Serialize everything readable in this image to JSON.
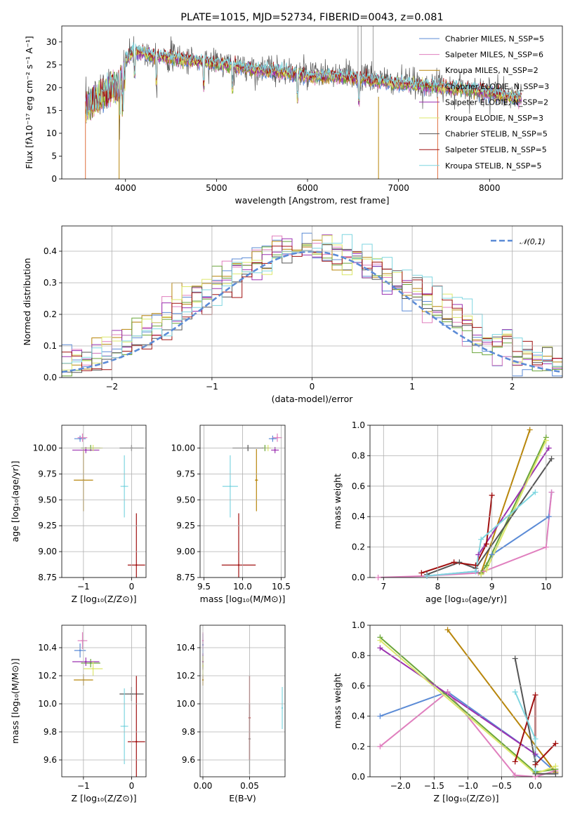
{
  "colors": [
    "#5b8bd6",
    "#e07fbe",
    "#b8860b",
    "#6aa53a",
    "#9b30b0",
    "#dce76b",
    "#555555",
    "#a01010",
    "#7fd6e0"
  ],
  "chart_data": [
    {
      "id": "spectrum",
      "type": "line",
      "title": "PLATE=1015, MJD=52734, FIBERID=0043, z=0.081",
      "xlabel": "wavelength [Angstrom, rest frame]",
      "ylabel": "Flux [fλ10⁻¹⁷ erg cm⁻² s⁻¹ A⁻¹]",
      "xlim": [
        3300,
        8800
      ],
      "ylim": [
        0,
        33.5
      ],
      "xticks": [
        4000,
        5000,
        6000,
        7000,
        8000
      ],
      "yticks": [
        0,
        5,
        10,
        15,
        20,
        25,
        30
      ],
      "legend": [
        "Chabrier MILES, N_SSP=5",
        "Salpeter MILES, N_SSP=6",
        "Kroupa MILES, N_SSP=2",
        "Chabrier ELODIE, N_SSP=3",
        "Salpeter ELODIE, N_SSP=2",
        "Kroupa ELODIE, N_SSP=3",
        "Chabrier STELIB, N_SSP=5",
        "Salpeter STELIB, N_SSP=5",
        "Kroupa STELIB, N_SSP=5"
      ],
      "continuum": {
        "x": [
          3550,
          3700,
          3900,
          4000,
          4100,
          4300,
          4500,
          4700,
          4900,
          5100,
          5400,
          5700,
          6000,
          6300,
          6600,
          6900,
          7200,
          7500,
          7800,
          8100,
          8300
        ],
        "y": [
          18,
          21,
          23,
          26,
          28,
          27,
          26.5,
          26,
          25.5,
          25,
          24,
          23.5,
          22.5,
          22.5,
          22,
          21,
          20.5,
          20,
          19.5,
          18.5,
          17.5
        ]
      }
    },
    {
      "id": "residuals",
      "type": "line",
      "xlabel": "(data-model)/error",
      "ylabel": "Normed distribution",
      "xlim": [
        -2.5,
        2.5
      ],
      "ylim": [
        0,
        0.48
      ],
      "xticks": [
        -2,
        -1,
        0,
        1,
        2
      ],
      "yticks": [
        0.0,
        0.1,
        0.2,
        0.3,
        0.4
      ],
      "legend": [
        "𝒩(0,1)"
      ]
    },
    {
      "id": "age-vs-Z",
      "type": "scatter",
      "xlabel": "Z [log₁₀(Z/Z⊙)]",
      "ylabel": "age  [log₁₀(age/yr)]",
      "xlim": [
        -1.45,
        0.3
      ],
      "ylim": [
        8.75,
        10.22
      ],
      "xticks": [
        -1,
        0
      ],
      "yticks": [
        8.75,
        9.0,
        9.25,
        9.5,
        9.75,
        10.0
      ],
      "points": [
        {
          "x": -1.07,
          "y": 10.09,
          "xerr": 0.12,
          "yerr": 0.03
        },
        {
          "x": -1.02,
          "y": 10.1,
          "xerr": 0.1,
          "yerr": 0.04
        },
        {
          "x": -1.0,
          "y": 9.69,
          "xerr": 0.2,
          "yerr": 0.3
        },
        {
          "x": -0.85,
          "y": 10.0,
          "xerr": 0.2,
          "yerr": 0.03
        },
        {
          "x": -0.95,
          "y": 9.98,
          "xerr": 0.28,
          "yerr": 0.03
        },
        {
          "x": -0.8,
          "y": 10.0,
          "xerr": 0.2,
          "yerr": 0.03
        },
        {
          "x": 0.0,
          "y": 10.0,
          "xerr": 0.25,
          "yerr": 0.03
        },
        {
          "x": 0.1,
          "y": 8.87,
          "xerr": 0.18,
          "yerr": 0.5
        },
        {
          "x": -0.15,
          "y": 9.63,
          "xerr": 0.08,
          "yerr": 0.3
        }
      ]
    },
    {
      "id": "age-vs-mass",
      "type": "scatter",
      "xlabel": "mass [log₁₀(M/M⊙)]",
      "xlim": [
        9.45,
        10.55
      ],
      "ylim": [
        8.75,
        10.22
      ],
      "xticks": [
        9.5,
        10.0,
        10.5
      ],
      "yticks": [
        8.75,
        9.0,
        9.25,
        9.5,
        9.75,
        10.0
      ],
      "points": [
        {
          "x": 10.39,
          "y": 10.09,
          "xerr": 0.05,
          "yerr": 0.03
        },
        {
          "x": 10.45,
          "y": 10.1,
          "xerr": 0.06,
          "yerr": 0.04
        },
        {
          "x": 10.18,
          "y": 9.69,
          "xerr": 0.02,
          "yerr": 0.3
        },
        {
          "x": 10.29,
          "y": 10.0,
          "xerr": 0.04,
          "yerr": 0.03
        },
        {
          "x": 10.42,
          "y": 9.98,
          "xerr": 0.05,
          "yerr": 0.03
        },
        {
          "x": 10.33,
          "y": 10.0,
          "xerr": 0.04,
          "yerr": 0.03
        },
        {
          "x": 10.07,
          "y": 10.0,
          "xerr": 0.2,
          "yerr": 0.03
        },
        {
          "x": 9.95,
          "y": 8.87,
          "xerr": 0.22,
          "yerr": 0.5
        },
        {
          "x": 9.84,
          "y": 9.63,
          "xerr": 0.1,
          "yerr": 0.3
        }
      ]
    },
    {
      "id": "mass-weight-vs-age",
      "type": "line",
      "xlabel": "age  [log₁₀(age/yr)]",
      "ylabel": "mass weight",
      "xlim": [
        6.75,
        10.3
      ],
      "ylim": [
        0,
        1.0
      ],
      "xticks": [
        7,
        8,
        9,
        10
      ],
      "yticks": [
        0.0,
        0.2,
        0.4,
        0.6,
        0.8,
        1.0
      ],
      "series": [
        {
          "x": [
            7.8,
            8.7,
            8.8,
            9.0,
            10.05,
            10.1
          ],
          "y": [
            0.01,
            0.04,
            0.02,
            0.15,
            0.4,
            0.56
          ]
        },
        {
          "x": [
            6.9,
            7.8,
            8.75,
            8.85,
            10.0,
            10.1
          ],
          "y": [
            0.0,
            0.01,
            0.03,
            0.04,
            0.2,
            0.56
          ]
        },
        {
          "x": [
            8.8,
            9.7
          ],
          "y": [
            0.03,
            0.97
          ]
        },
        {
          "x": [
            8.8,
            8.9,
            10.0
          ],
          "y": [
            0.03,
            0.08,
            0.92
          ]
        },
        {
          "x": [
            8.75,
            10.05
          ],
          "y": [
            0.15,
            0.85
          ]
        },
        {
          "x": [
            8.8,
            8.9,
            10.0
          ],
          "y": [
            0.02,
            0.05,
            0.9
          ]
        },
        {
          "x": [
            7.8,
            8.4,
            8.7,
            10.1
          ],
          "y": [
            0.02,
            0.1,
            0.06,
            0.78
          ]
        },
        {
          "x": [
            7.7,
            8.3,
            8.7,
            8.9,
            9.0
          ],
          "y": [
            0.03,
            0.1,
            0.08,
            0.22,
            0.54
          ]
        },
        {
          "x": [
            7.8,
            8.7,
            8.8,
            9.8
          ],
          "y": [
            0.01,
            0.04,
            0.25,
            0.56
          ]
        }
      ]
    },
    {
      "id": "mass-vs-Z",
      "type": "scatter",
      "xlabel": "Z [log₁₀(Z/Z⊙)]",
      "ylabel": "mass [log₁₀(M/M⊙)]",
      "xlim": [
        -1.45,
        0.3
      ],
      "ylim": [
        9.48,
        10.56
      ],
      "xticks": [
        -1,
        0
      ],
      "yticks": [
        9.6,
        9.8,
        10.0,
        10.2,
        10.4
      ],
      "points": [
        {
          "x": -1.07,
          "y": 10.38,
          "xerr": 0.12,
          "yerr": 0.05
        },
        {
          "x": -1.02,
          "y": 10.45,
          "xerr": 0.1,
          "yerr": 0.06
        },
        {
          "x": -1.0,
          "y": 10.17,
          "xerr": 0.2,
          "yerr": 0.04
        },
        {
          "x": -0.85,
          "y": 10.29,
          "xerr": 0.2,
          "yerr": 0.03
        },
        {
          "x": -0.95,
          "y": 10.3,
          "xerr": 0.28,
          "yerr": 0.03
        },
        {
          "x": -0.8,
          "y": 10.25,
          "xerr": 0.2,
          "yerr": 0.05
        },
        {
          "x": 0.0,
          "y": 10.07,
          "xerr": 0.25,
          "yerr": 0.05
        },
        {
          "x": 0.1,
          "y": 9.73,
          "xerr": 0.18,
          "yerr": 0.47
        },
        {
          "x": -0.15,
          "y": 9.84,
          "xerr": 0.08,
          "yerr": 0.27
        }
      ]
    },
    {
      "id": "mass-vs-EBV",
      "type": "scatter",
      "xlabel": "E(B-V)",
      "xlim": [
        -0.003,
        0.088
      ],
      "ylim": [
        9.48,
        10.56
      ],
      "xticks": [
        0.0,
        0.05
      ],
      "yticks": [
        9.6,
        9.8,
        10.0,
        10.2,
        10.4
      ],
      "points": [
        {
          "x": 0.0,
          "y": 10.42,
          "xerr": 0,
          "yerr": 0.08
        },
        {
          "x": 0.0,
          "y": 10.45,
          "xerr": 0,
          "yerr": 0.06
        },
        {
          "x": 0.0,
          "y": 10.17,
          "xerr": 0,
          "yerr": 0.04
        },
        {
          "x": 0.0,
          "y": 10.3,
          "xerr": 0,
          "yerr": 0.05
        },
        {
          "x": 0.0,
          "y": 10.3,
          "xerr": 0,
          "yerr": 0.06
        },
        {
          "x": 0.0,
          "y": 10.27,
          "xerr": 0,
          "yerr": 0.07
        },
        {
          "x": 0.05,
          "y": 9.75,
          "xerr": 0,
          "yerr": 0.25
        },
        {
          "x": 0.05,
          "y": 9.9,
          "xerr": 0,
          "yerr": 0.3
        },
        {
          "x": 0.085,
          "y": 9.97,
          "xerr": 0,
          "yerr": 0.15
        }
      ]
    },
    {
      "id": "mass-weight-vs-Z",
      "type": "line",
      "xlabel": "Z [log₁₀(Z/Z⊙)]",
      "ylabel": "mass weight",
      "xlim": [
        -2.45,
        0.4
      ],
      "ylim": [
        0,
        1.0
      ],
      "xticks": [
        -2.0,
        -1.5,
        -1.0,
        -0.5,
        0.0
      ],
      "yticks": [
        0.0,
        0.2,
        0.4,
        0.6,
        0.8,
        1.0
      ],
      "series": [
        {
          "x": [
            -2.3,
            -1.3,
            0.0,
            0.3
          ],
          "y": [
            0.4,
            0.56,
            0.15,
            0.03
          ]
        },
        {
          "x": [
            -2.3,
            -1.3,
            -0.3,
            0.0,
            0.3
          ],
          "y": [
            0.2,
            0.56,
            0.01,
            0.0,
            0.04
          ]
        },
        {
          "x": [
            -1.3,
            0.3
          ],
          "y": [
            0.97,
            0.03
          ]
        },
        {
          "x": [
            -2.3,
            0.0,
            0.3
          ],
          "y": [
            0.92,
            0.03,
            0.05
          ]
        },
        {
          "x": [
            -2.3,
            0.0
          ],
          "y": [
            0.85,
            0.15
          ]
        },
        {
          "x": [
            -2.3,
            0.0,
            0.3
          ],
          "y": [
            0.9,
            0.02,
            0.07
          ]
        },
        {
          "x": [
            -0.3,
            0.0,
            0.0,
            0.3
          ],
          "y": [
            0.78,
            0.1,
            0.02,
            0.02
          ]
        },
        {
          "x": [
            -0.3,
            0.0,
            0.0,
            0.3
          ],
          "y": [
            0.1,
            0.54,
            0.08,
            0.22
          ]
        },
        {
          "x": [
            -0.3,
            0.0,
            0.0
          ],
          "y": [
            0.56,
            0.25,
            0.04
          ]
        }
      ]
    }
  ]
}
